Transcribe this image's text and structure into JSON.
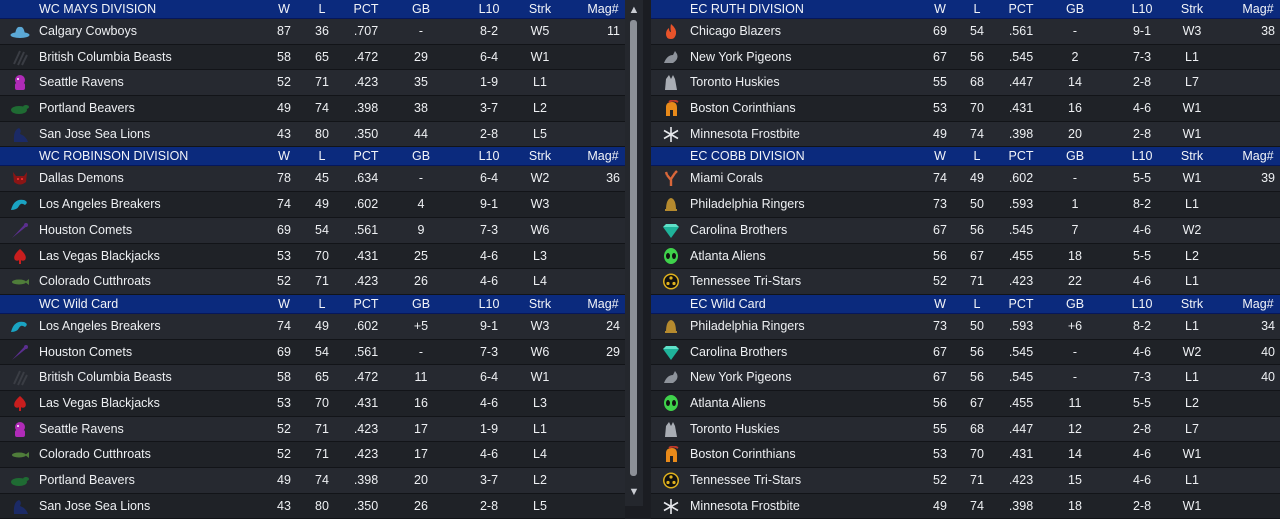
{
  "columns": {
    "w": "W",
    "l": "L",
    "pct": "PCT",
    "gb": "GB",
    "l10": "L10",
    "strk": "Strk",
    "mag": "Mag#"
  },
  "left": [
    {
      "title": "WC MAYS DIVISION",
      "rows": [
        {
          "team": "Calgary Cowboys",
          "logo": "cowboy-hat-icon",
          "color": "#5ba8d6",
          "w": "87",
          "l": "36",
          "pct": ".707",
          "gb": "-",
          "l10": "8-2",
          "strk": "W5",
          "mag": "11"
        },
        {
          "team": "British Columbia Beasts",
          "logo": "claw-marks-icon",
          "color": "#3a3d44",
          "w": "58",
          "l": "65",
          "pct": ".472",
          "gb": "29",
          "l10": "6-4",
          "strk": "W1",
          "mag": ""
        },
        {
          "team": "Seattle Ravens",
          "logo": "raven-icon",
          "color": "#b02bb8",
          "w": "52",
          "l": "71",
          "pct": ".423",
          "gb": "35",
          "l10": "1-9",
          "strk": "L1",
          "mag": ""
        },
        {
          "team": "Portland Beavers",
          "logo": "beaver-icon",
          "color": "#1f6b33",
          "w": "49",
          "l": "74",
          "pct": ".398",
          "gb": "38",
          "l10": "3-7",
          "strk": "L2",
          "mag": ""
        },
        {
          "team": "San Jose Sea Lions",
          "logo": "sea-lion-icon",
          "color": "#1b2a66",
          "w": "43",
          "l": "80",
          "pct": ".350",
          "gb": "44",
          "l10": "2-8",
          "strk": "L5",
          "mag": ""
        }
      ]
    },
    {
      "title": "WC ROBINSON DIVISION",
      "rows": [
        {
          "team": "Dallas Demons",
          "logo": "demon-icon",
          "color": "#8a1515",
          "w": "78",
          "l": "45",
          "pct": ".634",
          "gb": "-",
          "l10": "6-4",
          "strk": "W2",
          "mag": "36"
        },
        {
          "team": "Los Angeles Breakers",
          "logo": "wave-icon",
          "color": "#1aa3c2",
          "w": "74",
          "l": "49",
          "pct": ".602",
          "gb": "4",
          "l10": "9-1",
          "strk": "W3",
          "mag": ""
        },
        {
          "team": "Houston Comets",
          "logo": "comet-icon",
          "color": "#5b2f8f",
          "w": "69",
          "l": "54",
          "pct": ".561",
          "gb": "9",
          "l10": "7-3",
          "strk": "W6",
          "mag": ""
        },
        {
          "team": "Las Vegas Blackjacks",
          "logo": "spade-icon",
          "color": "#c81e1e",
          "w": "53",
          "l": "70",
          "pct": ".431",
          "gb": "25",
          "l10": "4-6",
          "strk": "L3",
          "mag": ""
        },
        {
          "team": "Colorado Cutthroats",
          "logo": "fish-icon",
          "color": "#4f7d3a",
          "w": "52",
          "l": "71",
          "pct": ".423",
          "gb": "26",
          "l10": "4-6",
          "strk": "L4",
          "mag": ""
        }
      ]
    },
    {
      "title": "WC  Wild Card",
      "rows": [
        {
          "team": "Los Angeles Breakers",
          "logo": "wave-icon",
          "color": "#1aa3c2",
          "w": "74",
          "l": "49",
          "pct": ".602",
          "gb": "+5",
          "l10": "9-1",
          "strk": "W3",
          "mag": "24"
        },
        {
          "team": "Houston Comets",
          "logo": "comet-icon",
          "color": "#5b2f8f",
          "w": "69",
          "l": "54",
          "pct": ".561",
          "gb": "-",
          "l10": "7-3",
          "strk": "W6",
          "mag": "29"
        },
        {
          "team": "British Columbia Beasts",
          "logo": "claw-marks-icon",
          "color": "#3a3d44",
          "w": "58",
          "l": "65",
          "pct": ".472",
          "gb": "11",
          "l10": "6-4",
          "strk": "W1",
          "mag": ""
        },
        {
          "team": "Las Vegas Blackjacks",
          "logo": "spade-icon",
          "color": "#c81e1e",
          "w": "53",
          "l": "70",
          "pct": ".431",
          "gb": "16",
          "l10": "4-6",
          "strk": "L3",
          "mag": ""
        },
        {
          "team": "Seattle Ravens",
          "logo": "raven-icon",
          "color": "#b02bb8",
          "w": "52",
          "l": "71",
          "pct": ".423",
          "gb": "17",
          "l10": "1-9",
          "strk": "L1",
          "mag": ""
        },
        {
          "team": "Colorado Cutthroats",
          "logo": "fish-icon",
          "color": "#4f7d3a",
          "w": "52",
          "l": "71",
          "pct": ".423",
          "gb": "17",
          "l10": "4-6",
          "strk": "L4",
          "mag": ""
        },
        {
          "team": "Portland Beavers",
          "logo": "beaver-icon",
          "color": "#1f6b33",
          "w": "49",
          "l": "74",
          "pct": ".398",
          "gb": "20",
          "l10": "3-7",
          "strk": "L2",
          "mag": ""
        },
        {
          "team": "San Jose Sea Lions",
          "logo": "sea-lion-icon",
          "color": "#1b2a66",
          "w": "43",
          "l": "80",
          "pct": ".350",
          "gb": "26",
          "l10": "2-8",
          "strk": "L5",
          "mag": ""
        }
      ]
    }
  ],
  "right": [
    {
      "title": "EC RUTH DIVISION",
      "rows": [
        {
          "team": "Chicago Blazers",
          "logo": "flame-icon",
          "color": "#e8532a",
          "w": "69",
          "l": "54",
          "pct": ".561",
          "gb": "-",
          "l10": "9-1",
          "strk": "W3",
          "mag": "38"
        },
        {
          "team": "New York Pigeons",
          "logo": "pigeon-icon",
          "color": "#8e939b",
          "w": "67",
          "l": "56",
          "pct": ".545",
          "gb": "2",
          "l10": "7-3",
          "strk": "L1",
          "mag": ""
        },
        {
          "team": "Toronto Huskies",
          "logo": "husky-icon",
          "color": "#a9adb4",
          "w": "55",
          "l": "68",
          "pct": ".447",
          "gb": "14",
          "l10": "2-8",
          "strk": "L7",
          "mag": ""
        },
        {
          "team": "Boston Corinthians",
          "logo": "spartan-helmet-icon",
          "color": "#e88a1a",
          "w": "53",
          "l": "70",
          "pct": ".431",
          "gb": "16",
          "l10": "4-6",
          "strk": "W1",
          "mag": ""
        },
        {
          "team": "Minnesota Frostbite",
          "logo": "snowflake-icon",
          "color": "#e6e8ec",
          "w": "49",
          "l": "74",
          "pct": ".398",
          "gb": "20",
          "l10": "2-8",
          "strk": "W1",
          "mag": ""
        }
      ]
    },
    {
      "title": "EC COBB DIVISION",
      "rows": [
        {
          "team": "Miami Corals",
          "logo": "coral-icon",
          "color": "#d9673a",
          "w": "74",
          "l": "49",
          "pct": ".602",
          "gb": "-",
          "l10": "5-5",
          "strk": "W1",
          "mag": "39"
        },
        {
          "team": "Philadelphia Ringers",
          "logo": "liberty-bell-icon",
          "color": "#b58a2e",
          "w": "73",
          "l": "50",
          "pct": ".593",
          "gb": "1",
          "l10": "8-2",
          "strk": "L1",
          "mag": ""
        },
        {
          "team": "Carolina Brothers",
          "logo": "gem-icon",
          "color": "#1fb39a",
          "w": "67",
          "l": "56",
          "pct": ".545",
          "gb": "7",
          "l10": "4-6",
          "strk": "W2",
          "mag": ""
        },
        {
          "team": "Atlanta Aliens",
          "logo": "alien-icon",
          "color": "#3fd24b",
          "w": "56",
          "l": "67",
          "pct": ".455",
          "gb": "18",
          "l10": "5-5",
          "strk": "L2",
          "mag": ""
        },
        {
          "team": "Tennessee Tri-Stars",
          "logo": "tri-stars-icon",
          "color": "#e0b21e",
          "w": "52",
          "l": "71",
          "pct": ".423",
          "gb": "22",
          "l10": "4-6",
          "strk": "L1",
          "mag": ""
        }
      ]
    },
    {
      "title": "EC  Wild Card",
      "rows": [
        {
          "team": "Philadelphia Ringers",
          "logo": "liberty-bell-icon",
          "color": "#b58a2e",
          "w": "73",
          "l": "50",
          "pct": ".593",
          "gb": "+6",
          "l10": "8-2",
          "strk": "L1",
          "mag": "34"
        },
        {
          "team": "Carolina Brothers",
          "logo": "gem-icon",
          "color": "#1fb39a",
          "w": "67",
          "l": "56",
          "pct": ".545",
          "gb": "-",
          "l10": "4-6",
          "strk": "W2",
          "mag": "40"
        },
        {
          "team": "New York Pigeons",
          "logo": "pigeon-icon",
          "color": "#8e939b",
          "w": "67",
          "l": "56",
          "pct": ".545",
          "gb": "-",
          "l10": "7-3",
          "strk": "L1",
          "mag": "40"
        },
        {
          "team": "Atlanta Aliens",
          "logo": "alien-icon",
          "color": "#3fd24b",
          "w": "56",
          "l": "67",
          "pct": ".455",
          "gb": "11",
          "l10": "5-5",
          "strk": "L2",
          "mag": ""
        },
        {
          "team": "Toronto Huskies",
          "logo": "husky-icon",
          "color": "#a9adb4",
          "w": "55",
          "l": "68",
          "pct": ".447",
          "gb": "12",
          "l10": "2-8",
          "strk": "L7",
          "mag": ""
        },
        {
          "team": "Boston Corinthians",
          "logo": "spartan-helmet-icon",
          "color": "#e88a1a",
          "w": "53",
          "l": "70",
          "pct": ".431",
          "gb": "14",
          "l10": "4-6",
          "strk": "W1",
          "mag": ""
        },
        {
          "team": "Tennessee Tri-Stars",
          "logo": "tri-stars-icon",
          "color": "#e0b21e",
          "w": "52",
          "l": "71",
          "pct": ".423",
          "gb": "15",
          "l10": "4-6",
          "strk": "L1",
          "mag": ""
        },
        {
          "team": "Minnesota Frostbite",
          "logo": "snowflake-icon",
          "color": "#e6e8ec",
          "w": "49",
          "l": "74",
          "pct": ".398",
          "gb": "18",
          "l10": "2-8",
          "strk": "W1",
          "mag": ""
        }
      ]
    }
  ],
  "scrollbar": {
    "up": "▲",
    "down": "▼"
  }
}
